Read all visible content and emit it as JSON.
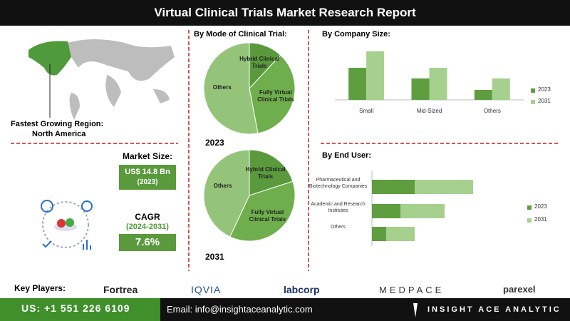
{
  "header": {
    "title": "Virtual Clinical Trials Market Research Report"
  },
  "region": {
    "label": "Fastest Growing Region:",
    "value": "North America"
  },
  "market_size": {
    "label": "Market Size:",
    "value": "US$ 14.8 Bn",
    "year": "(2023)"
  },
  "cagr": {
    "label": "CAGR",
    "period": "(2024-2031)",
    "value": "7.6%"
  },
  "chart_data": [
    {
      "type": "pie",
      "title": "By  Mode of Clinical Trial:",
      "label": "2023",
      "categories": [
        "Hybrid Clinical Trials",
        "Fully Virtual Clinical Trials",
        "Others"
      ],
      "values": [
        12,
        35,
        53
      ],
      "colors": [
        "#5a9a3c",
        "#6fae4c",
        "#94c47a"
      ]
    },
    {
      "type": "pie",
      "label": "2031",
      "categories": [
        "Hybrid Clinical Trials",
        "Fully Virtual Clinical Trials",
        "Others"
      ],
      "values": [
        20,
        37,
        43
      ],
      "colors": [
        "#5a9a3c",
        "#6fae4c",
        "#94c47a"
      ]
    },
    {
      "type": "bar",
      "title": "By  Company Size:",
      "categories": [
        "Small",
        "Mid-Sized",
        "Others"
      ],
      "ylim": [
        0,
        80
      ],
      "series": [
        {
          "name": "2023",
          "color": "#5f9e3f",
          "values": [
            45,
            30,
            14
          ]
        },
        {
          "name": "2031",
          "color": "#a6d08e",
          "values": [
            68,
            45,
            30
          ]
        }
      ]
    },
    {
      "type": "hbar-stacked",
      "title": "By End User:",
      "categories": [
        "Pharmaceutical and Biotechnology Companies",
        "Academic and Research Institutes",
        "Others"
      ],
      "xlim": [
        0,
        160
      ],
      "series": [
        {
          "name": "2023",
          "color": "#5f9e3f",
          "values": [
            60,
            40,
            20
          ]
        },
        {
          "name": "2031",
          "color": "#a6d08e",
          "values": [
            82,
            62,
            40
          ]
        }
      ]
    }
  ],
  "key_players": {
    "label": "Key Players:",
    "names": [
      "Fortrea",
      "IQVIA",
      "labcorp",
      "MEDPACE",
      "parexel"
    ]
  },
  "footer": {
    "phone": "US: +1 551 226 6109",
    "email": "Email: info@insightaceanalytic.com",
    "brand": "INSIGHT ACE ANALYTIC"
  }
}
